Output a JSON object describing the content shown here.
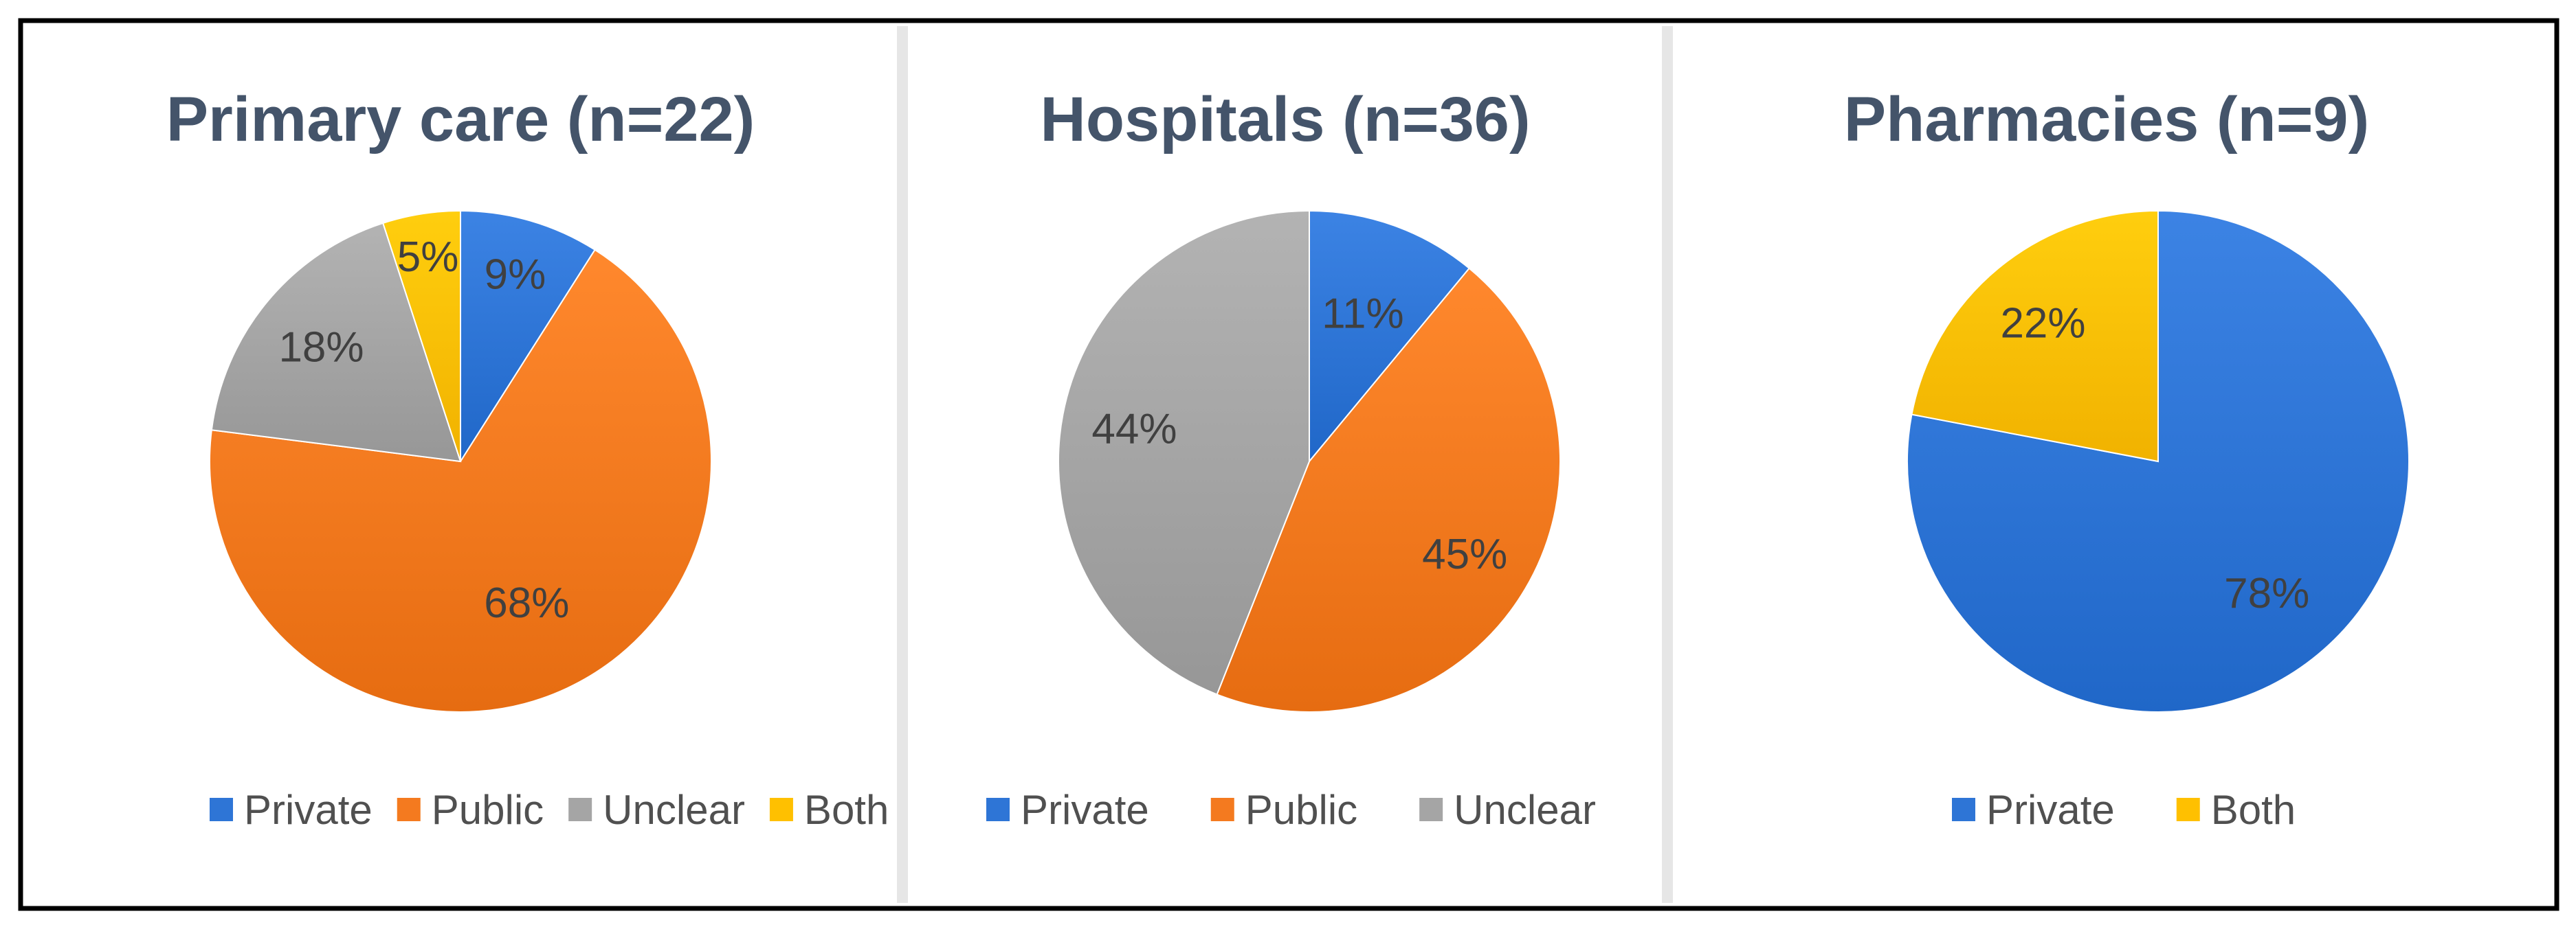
{
  "chart_data": [
    {
      "type": "pie",
      "title": "Primary care (n=22)",
      "series": [
        {
          "name": "Private",
          "value": 9,
          "label": "9%",
          "color": "#2E75D6"
        },
        {
          "name": "Public",
          "value": 68,
          "label": "68%",
          "color": "#F47A1F"
        },
        {
          "name": "Unclear",
          "value": 18,
          "label": "18%",
          "color": "#A5A5A5"
        },
        {
          "name": "Both",
          "value": 5,
          "label": "5%",
          "color": "#FFC000"
        }
      ],
      "legend": [
        "Private",
        "Public",
        "Unclear",
        "Both"
      ],
      "legend_position": "bottom"
    },
    {
      "type": "pie",
      "title": "Hospitals (n=36)",
      "series": [
        {
          "name": "Private",
          "value": 11,
          "label": "11%",
          "color": "#2E75D6"
        },
        {
          "name": "Public",
          "value": 45,
          "label": "45%",
          "color": "#F47A1F"
        },
        {
          "name": "Unclear",
          "value": 44,
          "label": "44%",
          "color": "#A5A5A5"
        }
      ],
      "legend": [
        "Private",
        "Public",
        "Unclear"
      ],
      "legend_position": "bottom"
    },
    {
      "type": "pie",
      "title": "Pharmacies (n=9)",
      "series": [
        {
          "name": "Private",
          "value": 78,
          "label": "78%",
          "color": "#2E75D6"
        },
        {
          "name": "Both",
          "value": 22,
          "label": "22%",
          "color": "#FFC000"
        }
      ],
      "legend": [
        "Private",
        "Both"
      ],
      "legend_position": "bottom"
    }
  ],
  "colors": {
    "title": "#44546A",
    "label_text": "#404040",
    "legend_text": "#505050",
    "border": "#000000",
    "divider": "#D9D9D9"
  }
}
